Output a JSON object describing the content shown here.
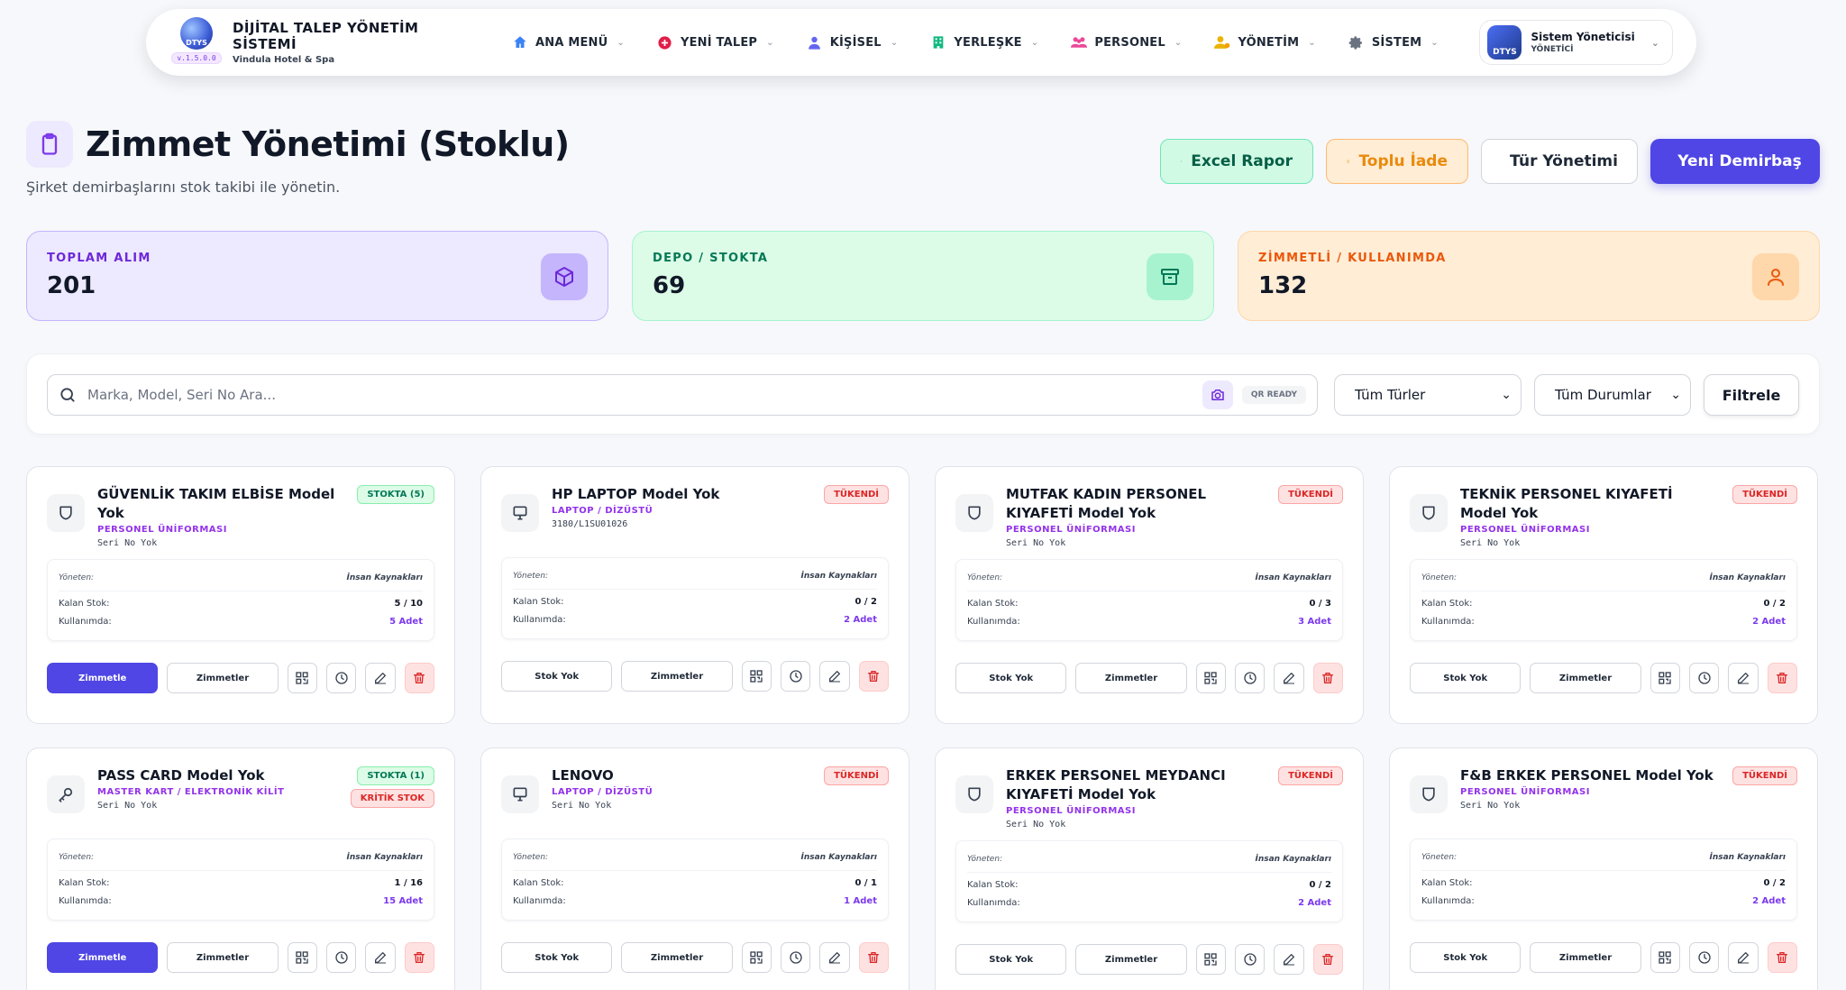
{
  "brand": {
    "logo_text": "DTYS",
    "version": "v.1.5.0.0",
    "title": "DİJİTAL TALEP YÖNETİM SİSTEMİ",
    "subtitle": "Vindula Hotel & Spa"
  },
  "nav": [
    {
      "id": "ana-menu",
      "label": "ANA MENÜ",
      "icon": "home-icon",
      "color": "#3b82f6"
    },
    {
      "id": "yeni-talep",
      "label": "YENİ TALEP",
      "icon": "plus-circle-icon",
      "color": "#e11d48"
    },
    {
      "id": "kisisel",
      "label": "KİŞİSEL",
      "icon": "user-icon",
      "color": "#6366f1"
    },
    {
      "id": "yerleske",
      "label": "YERLEŞKE",
      "icon": "building-icon",
      "color": "#10b981"
    },
    {
      "id": "personel",
      "label": "PERSONEL",
      "icon": "users-icon",
      "color": "#ec4899"
    },
    {
      "id": "yonetim",
      "label": "YÖNETİM",
      "icon": "user-cog-icon",
      "color": "#eab308"
    },
    {
      "id": "sistem",
      "label": "SİSTEM",
      "icon": "gear-icon",
      "color": "#6b7280"
    }
  ],
  "profile": {
    "name": "Sistem Yöneticisi",
    "role": "YÖNETİCİ",
    "avatar_text": "DTYS"
  },
  "page": {
    "title": "Zimmet Yönetimi (Stoklu)",
    "subtitle": "Şirket demirbaşlarını stok takibi ile yönetin."
  },
  "actions": {
    "excel": "Excel Rapor",
    "iade": "Toplu İade",
    "tur": "Tür Yönetimi",
    "yeni": "Yeni Demirbaş"
  },
  "stats": [
    {
      "id": "toplam",
      "label": "TOPLAM ALIM",
      "value": "201"
    },
    {
      "id": "depo",
      "label": "DEPO / STOKTA",
      "value": "69"
    },
    {
      "id": "zimmetli",
      "label": "ZİMMETLİ / KULLANIMDA",
      "value": "132"
    }
  ],
  "filter": {
    "search_placeholder": "Marka, Model, Seri No Ara...",
    "qr_label": "QR READY",
    "type_selected": "Tüm Türler",
    "status_selected": "Tüm Durumlar",
    "filter_button": "Filtrele"
  },
  "labels": {
    "manager": "Yöneten:",
    "remaining": "Kalan Stok:",
    "in_use": "Kullanımda:",
    "assign": "Zimmetle",
    "no_stock": "Stok Yok",
    "assignments": "Zimmetler"
  },
  "items": [
    {
      "name": "GÜVENLİK TAKIM ELBİSE Model Yok",
      "category": "PERSONEL ÜNİFORMASI",
      "serial": "Seri No Yok",
      "icon": "shirt-icon",
      "badges": [
        {
          "text": "STOKTA (5)",
          "kind": "green"
        }
      ],
      "manager": "İnsan Kaynakları",
      "remaining": "5 / 10",
      "in_use": "5 Adet",
      "available": true
    },
    {
      "name": "HP LAPTOP Model Yok",
      "category": "LAPTOP / DİZÜSTÜ",
      "serial": "3180/L1SU01026",
      "icon": "laptop-icon",
      "badges": [
        {
          "text": "TÜKENDİ",
          "kind": "red"
        }
      ],
      "manager": "İnsan Kaynakları",
      "remaining": "0 / 2",
      "in_use": "2 Adet",
      "available": false
    },
    {
      "name": "MUTFAK KADIN PERSONEL KIYAFETİ Model Yok",
      "category": "PERSONEL ÜNİFORMASI",
      "serial": "Seri No Yok",
      "icon": "shirt-icon",
      "badges": [
        {
          "text": "TÜKENDİ",
          "kind": "red"
        }
      ],
      "manager": "İnsan Kaynakları",
      "remaining": "0 / 3",
      "in_use": "3 Adet",
      "available": false
    },
    {
      "name": "TEKNİK PERSONEL KIYAFETİ Model Yok",
      "category": "PERSONEL ÜNİFORMASI",
      "serial": "Seri No Yok",
      "icon": "shirt-icon",
      "badges": [
        {
          "text": "TÜKENDİ",
          "kind": "red"
        }
      ],
      "manager": "İnsan Kaynakları",
      "remaining": "0 / 2",
      "in_use": "2 Adet",
      "available": false
    },
    {
      "name": "PASS CARD Model Yok",
      "category": "MASTER KART / ELEKTRONİK KİLİT",
      "serial": "Seri No Yok",
      "icon": "key-icon",
      "badges": [
        {
          "text": "STOKTA (1)",
          "kind": "green"
        },
        {
          "text": "KRİTİK STOK",
          "kind": "red"
        }
      ],
      "manager": "İnsan Kaynakları",
      "remaining": "1 / 16",
      "in_use": "15 Adet",
      "available": true
    },
    {
      "name": "LENOVO",
      "category": "LAPTOP / DİZÜSTÜ",
      "serial": "Seri No Yok",
      "icon": "laptop-icon",
      "badges": [
        {
          "text": "TÜKENDİ",
          "kind": "red"
        }
      ],
      "manager": "İnsan Kaynakları",
      "remaining": "0 / 1",
      "in_use": "1 Adet",
      "available": false
    },
    {
      "name": "ERKEK PERSONEL MEYDANCI KIYAFETİ Model Yok",
      "category": "PERSONEL ÜNİFORMASI",
      "serial": "Seri No Yok",
      "icon": "shirt-icon",
      "badges": [
        {
          "text": "TÜKENDİ",
          "kind": "red"
        }
      ],
      "manager": "İnsan Kaynakları",
      "remaining": "0 / 2",
      "in_use": "2 Adet",
      "available": false
    },
    {
      "name": "F&B ERKEK PERSONEL Model Yok",
      "category": "PERSONEL ÜNİFORMASI",
      "serial": "Seri No Yok",
      "icon": "shirt-icon",
      "badges": [
        {
          "text": "TÜKENDİ",
          "kind": "red"
        }
      ],
      "manager": "İnsan Kaynakları",
      "remaining": "0 / 2",
      "in_use": "2 Adet",
      "available": false
    }
  ],
  "colors": {
    "primary": "#4f46e5",
    "danger": "#dc2626",
    "success": "#047857",
    "accent_purple": "#9333ea"
  }
}
